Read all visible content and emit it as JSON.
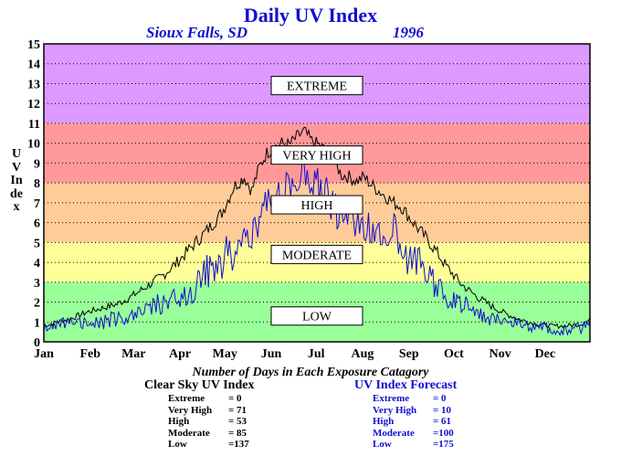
{
  "title": "Daily UV Index",
  "location": "Sioux Falls, SD",
  "year": "1996",
  "colors": {
    "extreme": "#dd99ff",
    "very_high": "#ff9999",
    "high": "#ffcc99",
    "moderate": "#ffff99",
    "low": "#99ff99",
    "clear_line": "#000000",
    "forecast_line": "#1010d0"
  },
  "chart_data": {
    "type": "line",
    "ylabel": "UV Index",
    "ylim": [
      0,
      15
    ],
    "yticks": [
      "0",
      "1",
      "2",
      "3",
      "4",
      "5",
      "6",
      "7",
      "8",
      "9",
      "10",
      "11",
      "12",
      "13",
      "14",
      "15"
    ],
    "months": [
      "Jan",
      "Feb",
      "Mar",
      "Apr",
      "May",
      "Jun",
      "Jul",
      "Aug",
      "Sep",
      "Oct",
      "Nov",
      "Dec"
    ],
    "grid": true,
    "bands": [
      {
        "label": "LOW",
        "from": 0,
        "to": 3,
        "color": "#99ff99",
        "label_at": 1.3
      },
      {
        "label": "MODERATE",
        "from": 3,
        "to": 5,
        "color": "#ffff99",
        "label_at": 4.4
      },
      {
        "label": "HIGH",
        "from": 5,
        "to": 8,
        "color": "#ffcc99",
        "label_at": 6.9
      },
      {
        "label": "VERY HIGH",
        "from": 8,
        "to": 11,
        "color": "#ff9999",
        "label_at": 9.4
      },
      {
        "label": "EXTREME",
        "from": 11,
        "to": 15,
        "color": "#dd99ff",
        "label_at": 12.9
      }
    ],
    "series": [
      {
        "name": "Clear Sky UV Index",
        "color": "#000000",
        "x": [
          1,
          10,
          20,
          30,
          40,
          50,
          60,
          70,
          80,
          90,
          100,
          110,
          120,
          128,
          135,
          140,
          145,
          150,
          155,
          160,
          165,
          170,
          175,
          180,
          185,
          190,
          195,
          200,
          205,
          210,
          215,
          220,
          225,
          230,
          235,
          240,
          250,
          260,
          270,
          280,
          290,
          300,
          310,
          320,
          330,
          340,
          350,
          360,
          366
        ],
        "values": [
          0.8,
          1.0,
          1.2,
          1.5,
          1.7,
          1.9,
          2.3,
          2.8,
          3.3,
          4.0,
          4.8,
          5.6,
          6.5,
          7.8,
          8.3,
          7.6,
          8.8,
          9.5,
          9.8,
          10.0,
          9.9,
          10.3,
          10.6,
          10.1,
          9.9,
          9.6,
          9.1,
          8.4,
          8.3,
          8.1,
          8.3,
          7.9,
          7.6,
          7.3,
          7.0,
          6.8,
          5.8,
          4.9,
          3.8,
          2.9,
          2.3,
          1.8,
          1.4,
          1.1,
          0.9,
          0.8,
          0.8,
          0.9,
          1.1
        ]
      },
      {
        "name": "UV Index Forecast",
        "color": "#1010d0",
        "x": [
          1,
          10,
          20,
          30,
          40,
          50,
          60,
          70,
          80,
          90,
          100,
          110,
          120,
          128,
          135,
          140,
          145,
          150,
          155,
          160,
          165,
          170,
          175,
          180,
          185,
          190,
          195,
          200,
          205,
          210,
          215,
          220,
          225,
          230,
          235,
          240,
          250,
          260,
          270,
          280,
          290,
          300,
          310,
          320,
          330,
          340,
          350,
          360,
          366
        ],
        "values": [
          0.7,
          0.8,
          0.9,
          0.8,
          1.0,
          1.2,
          1.4,
          1.7,
          2.2,
          2.6,
          3.0,
          4.0,
          4.8,
          5.2,
          5.8,
          6.4,
          7.0,
          7.5,
          7.8,
          8.2,
          8.3,
          8.6,
          9.2,
          8.8,
          8.3,
          7.9,
          7.2,
          6.9,
          7.1,
          6.5,
          6.8,
          6.6,
          6.3,
          6.0,
          6.2,
          5.4,
          4.6,
          3.7,
          2.6,
          2.0,
          1.7,
          1.2,
          1.0,
          0.8,
          0.6,
          0.6,
          0.5,
          0.6,
          0.7
        ]
      }
    ]
  },
  "days_heading": "Number of Days in Each Exposure Catagory",
  "clear_stats": {
    "heading": "Clear Sky UV Index",
    "rows": [
      {
        "label": "Extreme",
        "value": "=    0"
      },
      {
        "label": "Very High",
        "value": "=  71"
      },
      {
        "label": "High",
        "value": "=  53"
      },
      {
        "label": "Moderate",
        "value": "=  85"
      },
      {
        "label": "Low",
        "value": "=137"
      }
    ]
  },
  "forecast_stats": {
    "heading": "UV Index Forecast",
    "rows": [
      {
        "label": "Extreme",
        "value": "=    0"
      },
      {
        "label": "Very High",
        "value": "=  10"
      },
      {
        "label": "High",
        "value": "=  61"
      },
      {
        "label": "Moderate",
        "value": "=100"
      },
      {
        "label": "Low",
        "value": "=175"
      }
    ]
  }
}
